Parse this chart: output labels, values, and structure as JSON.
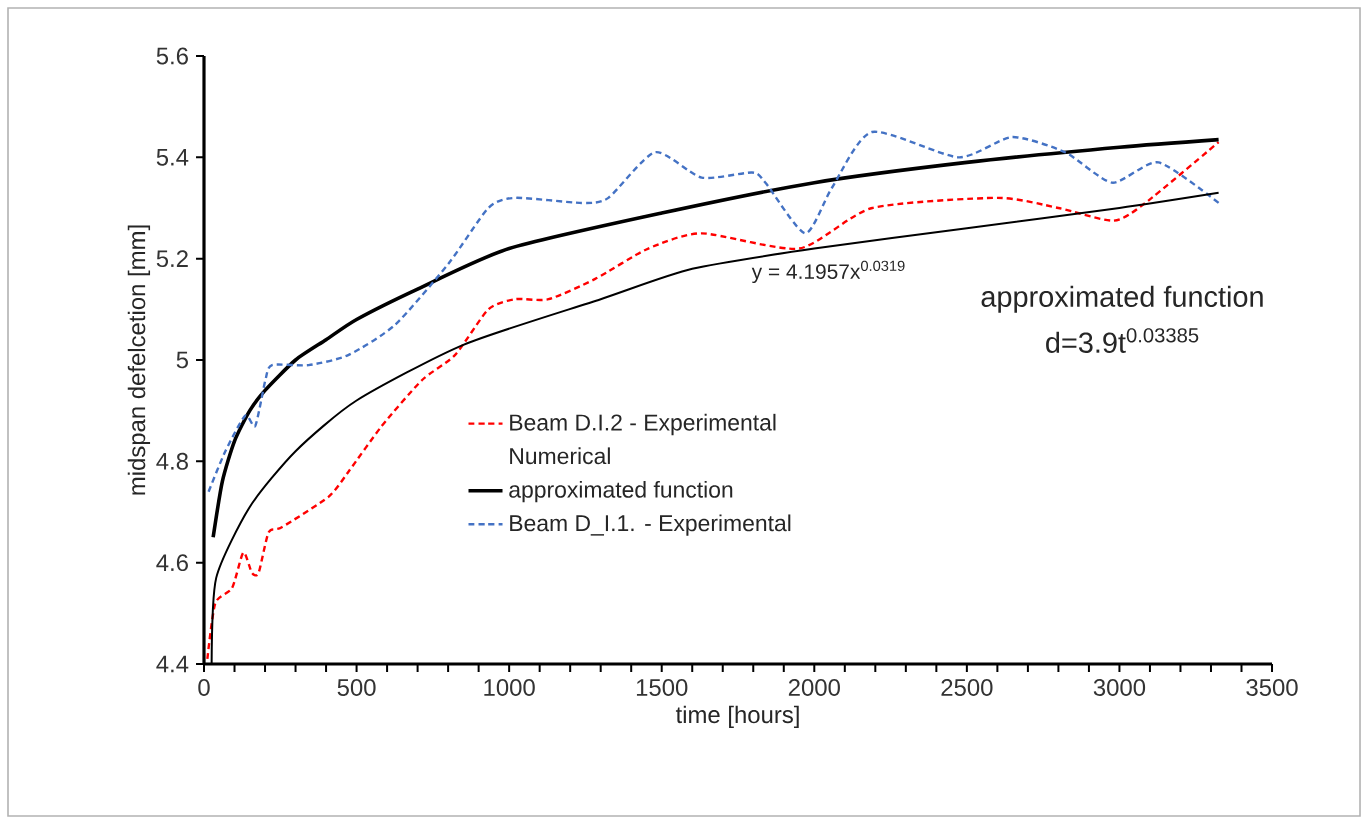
{
  "chart_data": {
    "type": "line",
    "xlabel": "time [hours]",
    "ylabel": "midspan defelcetion [mm]",
    "xlim": [
      0,
      3500
    ],
    "ylim": [
      4.4,
      5.6
    ],
    "xticks": [
      0,
      500,
      1000,
      1500,
      2000,
      2500,
      3000,
      3500
    ],
    "yticks": [
      4.4,
      4.6,
      4.8,
      5,
      5.2,
      5.4,
      5.6
    ],
    "legend": "bottom",
    "marker": "none",
    "series": [
      {
        "name": "Beam D.I.2 - Experimental",
        "color": "#ff0000",
        "line_style": "dashed",
        "x": [
          11,
          37,
          92,
          129,
          157,
          179,
          212,
          255,
          408,
          474,
          583,
          714,
          823,
          932,
          1020,
          1129,
          1282,
          1456,
          1631,
          1950,
          2190,
          2600,
          2800,
          2980,
          3085,
          3325
        ],
        "values": [
          4.41,
          4.52,
          4.55,
          4.62,
          4.58,
          4.58,
          4.66,
          4.67,
          4.73,
          4.78,
          4.87,
          4.96,
          5.01,
          5.1,
          5.12,
          5.12,
          5.16,
          5.22,
          5.25,
          5.22,
          5.3,
          5.32,
          5.3,
          5.275,
          5.31,
          5.43
        ]
      },
      {
        "name": "Numerical",
        "line_style": "none"
      },
      {
        "name": "approximated function",
        "color": "#000000",
        "line_style": "solid",
        "x": [
          30,
          60,
          100,
          150,
          200,
          300,
          400,
          500,
          700,
          1000,
          1500,
          2000,
          2500,
          3000,
          3325
        ],
        "values": [
          4.65,
          4.76,
          4.84,
          4.9,
          4.94,
          5.0,
          5.04,
          5.08,
          5.14,
          5.22,
          5.29,
          5.35,
          5.39,
          5.42,
          5.435
        ]
      },
      {
        "name": "Beam D_I.1. - Experimental",
        "color": "#4472c4",
        "line_style": "dashed",
        "x": [
          15,
          70,
          135,
          168,
          201,
          223,
          343,
          474,
          627,
          801,
          932,
          1020,
          1238,
          1325,
          1478,
          1631,
          1796,
          1840,
          1970,
          2058,
          2189,
          2473,
          2648,
          2822,
          2976,
          3128,
          3325
        ],
        "values": [
          4.74,
          4.82,
          4.89,
          4.87,
          4.96,
          4.99,
          4.99,
          5.01,
          5.07,
          5.19,
          5.3,
          5.32,
          5.31,
          5.32,
          5.41,
          5.36,
          5.37,
          5.35,
          5.25,
          5.34,
          5.45,
          5.4,
          5.44,
          5.41,
          5.35,
          5.39,
          5.31
        ]
      },
      {
        "color": "#000000",
        "line_style": "solid",
        "x": [
          25,
          40,
          150,
          300,
          500,
          850,
          1300,
          1600,
          2000,
          2500,
          3000,
          3325
        ],
        "values": [
          4.4,
          4.57,
          4.71,
          4.82,
          4.92,
          5.03,
          5.12,
          5.18,
          5.22,
          5.26,
          5.3,
          5.33
        ]
      }
    ],
    "annotations": [
      {
        "text": "y = 4.1957x$^{0.0319}$",
        "x": 2048,
        "y": 5.21
      },
      "approximated function",
      "d=3.9t$^{0.03385}$"
    ]
  }
}
